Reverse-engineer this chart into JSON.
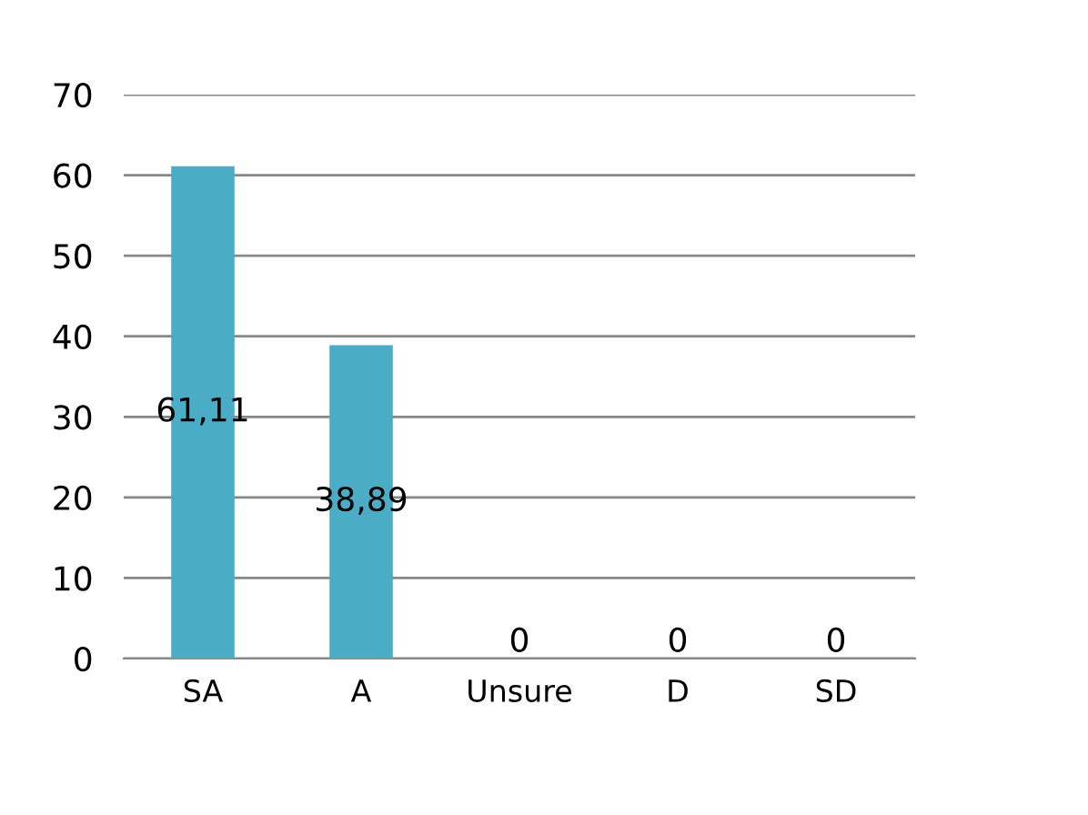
{
  "chart_data": {
    "type": "bar",
    "categories": [
      "SA",
      "A",
      "Unsure",
      "D",
      "SD"
    ],
    "values": [
      61.11,
      38.89,
      0,
      0,
      0
    ],
    "value_labels": [
      "61,11",
      "38,89",
      "0",
      "0",
      "0"
    ],
    "color": "#4bacc6",
    "ylim": [
      0,
      70
    ],
    "yticks": [
      0,
      10,
      20,
      30,
      40,
      50,
      60,
      70
    ],
    "grid": "y",
    "legend": false
  }
}
